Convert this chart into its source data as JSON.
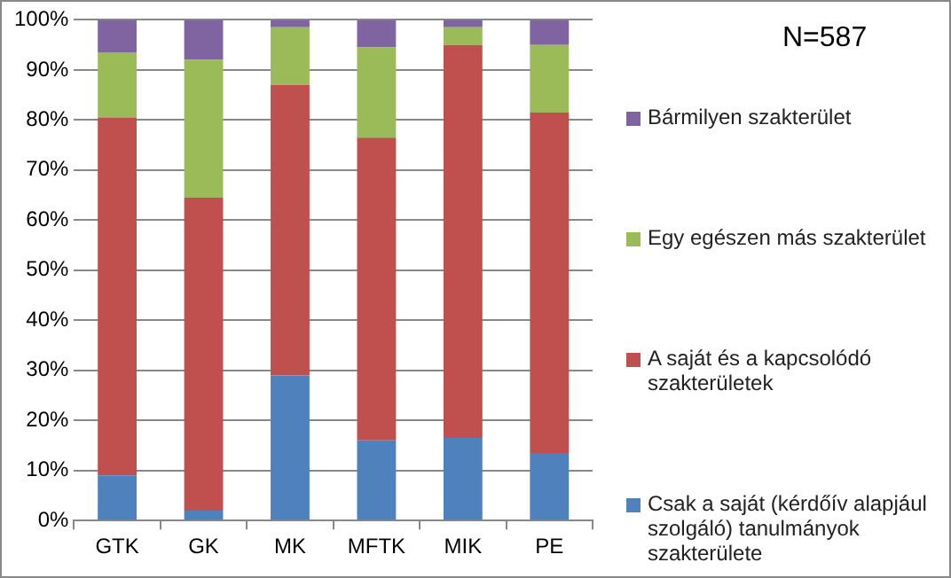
{
  "chart_data": {
    "type": "bar",
    "stacked": true,
    "categories": [
      "GTK",
      "GK",
      "MK",
      "MFTK",
      "MIK",
      "PE"
    ],
    "series": [
      {
        "name": "Csak a saját (kérdőív alapjául szolgáló) tanulmányok szakterülete",
        "color": "#4f81bd",
        "values": [
          9,
          2,
          29,
          16,
          16.5,
          13.5
        ]
      },
      {
        "name": "A saját és a kapcsolódó szakterületek",
        "color": "#c0504d",
        "values": [
          71.5,
          62.5,
          58,
          60.5,
          78.5,
          68
        ]
      },
      {
        "name": "Egy egészen más szakterület",
        "color": "#9bbb59",
        "values": [
          13,
          27.5,
          11.5,
          18,
          3.5,
          13.5
        ]
      },
      {
        "name": "Bármilyen szakterület",
        "color": "#8064a2",
        "values": [
          6.5,
          8,
          1.5,
          5.5,
          1.5,
          5
        ]
      }
    ],
    "ylim": [
      0,
      100
    ],
    "yticks": [
      {
        "value": 0,
        "label": "0%"
      },
      {
        "value": 10,
        "label": "10%"
      },
      {
        "value": 20,
        "label": "20%"
      },
      {
        "value": 30,
        "label": "30%"
      },
      {
        "value": 40,
        "label": "40%"
      },
      {
        "value": 50,
        "label": "50%"
      },
      {
        "value": 60,
        "label": "60%"
      },
      {
        "value": 70,
        "label": "70%"
      },
      {
        "value": 80,
        "label": "80%"
      },
      {
        "value": 90,
        "label": "90%"
      },
      {
        "value": 100,
        "label": "100%"
      }
    ],
    "grid": "y",
    "legend": "right",
    "annotations": [
      "N=587"
    ]
  }
}
